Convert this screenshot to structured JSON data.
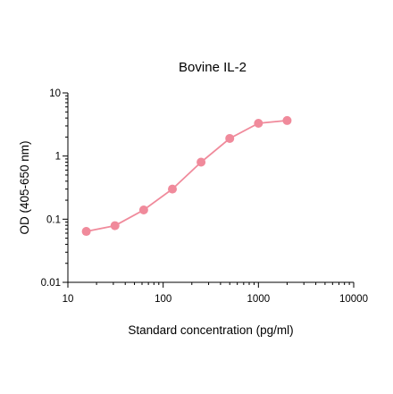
{
  "chart_data": {
    "type": "line",
    "title": "Bovine IL-2",
    "xlabel": "Standard concentration (pg/ml)",
    "ylabel": "OD (405-650 nm)",
    "x_scale": "log",
    "y_scale": "log",
    "xlim": [
      10,
      10000
    ],
    "ylim": [
      0.01,
      10
    ],
    "x_ticks": [
      10,
      100,
      1000,
      10000
    ],
    "x_tick_labels": [
      "10",
      "100",
      "1000",
      "10000"
    ],
    "y_ticks": [
      0.01,
      0.1,
      1,
      10
    ],
    "y_tick_labels": [
      "0.01",
      "0.1",
      "1",
      "10"
    ],
    "grid": false,
    "legend": "none",
    "series": [
      {
        "color": "#f08a9b",
        "x": [
          15.6,
          31.2,
          62.5,
          125,
          250,
          500,
          1000,
          2000
        ],
        "y": [
          0.064,
          0.079,
          0.14,
          0.3,
          0.8,
          1.9,
          3.3,
          3.65
        ]
      }
    ]
  }
}
